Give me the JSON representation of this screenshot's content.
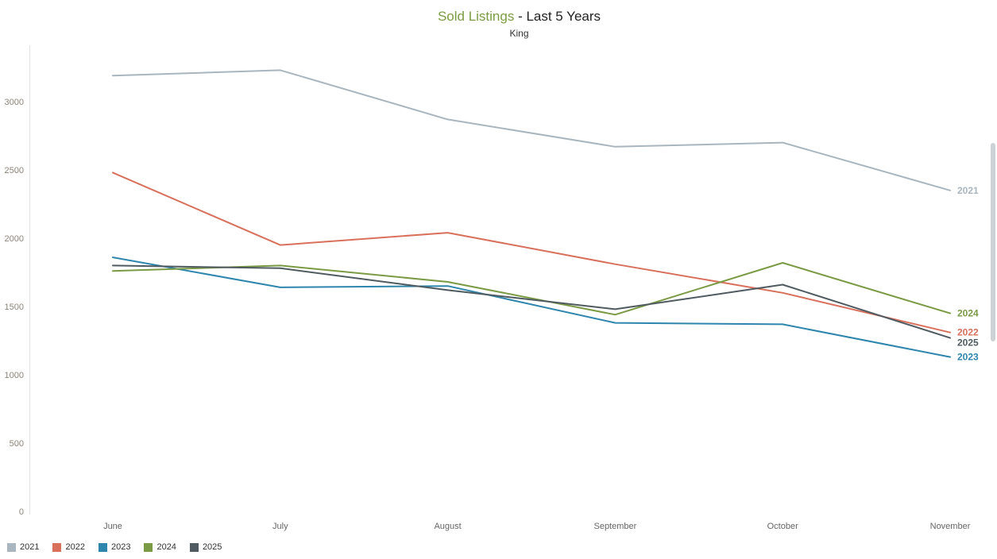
{
  "header": {
    "title": "Sold Listings",
    "title_suffix": " - Last 5 Years",
    "subtitle": "King"
  },
  "chart_data": {
    "type": "line",
    "title": "Sold Listings - Last 5 Years",
    "subtitle": "King",
    "xlabel": "",
    "ylabel": "",
    "x": [
      "June",
      "July",
      "August",
      "September",
      "October",
      "November"
    ],
    "series": [
      {
        "name": "2021",
        "color": "#a9b6bf",
        "values": [
          3190,
          3230,
          2870,
          2670,
          2700,
          2350
        ]
      },
      {
        "name": "2022",
        "color": "#d9705c",
        "values": [
          2480,
          1950,
          2040,
          1810,
          1600,
          1310
        ]
      },
      {
        "name": "2023",
        "color": "#2e85ad",
        "values": [
          1860,
          1640,
          1650,
          1380,
          1370,
          1130
        ]
      },
      {
        "name": "2024",
        "color": "#7a9a44",
        "values": [
          1760,
          1800,
          1680,
          1440,
          1820,
          1450
        ]
      },
      {
        "name": "2025",
        "color": "#4f5b60",
        "values": [
          1800,
          1780,
          1620,
          1480,
          1660,
          1270
        ]
      }
    ],
    "ylim": [
      0,
      3400
    ],
    "yticks": [
      0,
      500,
      1000,
      1500,
      2000,
      2500,
      3000
    ],
    "grid": false,
    "legend_position": "bottom-left",
    "series_end_labels": [
      "2021",
      "2022",
      "2023",
      "2024",
      "2025"
    ]
  }
}
